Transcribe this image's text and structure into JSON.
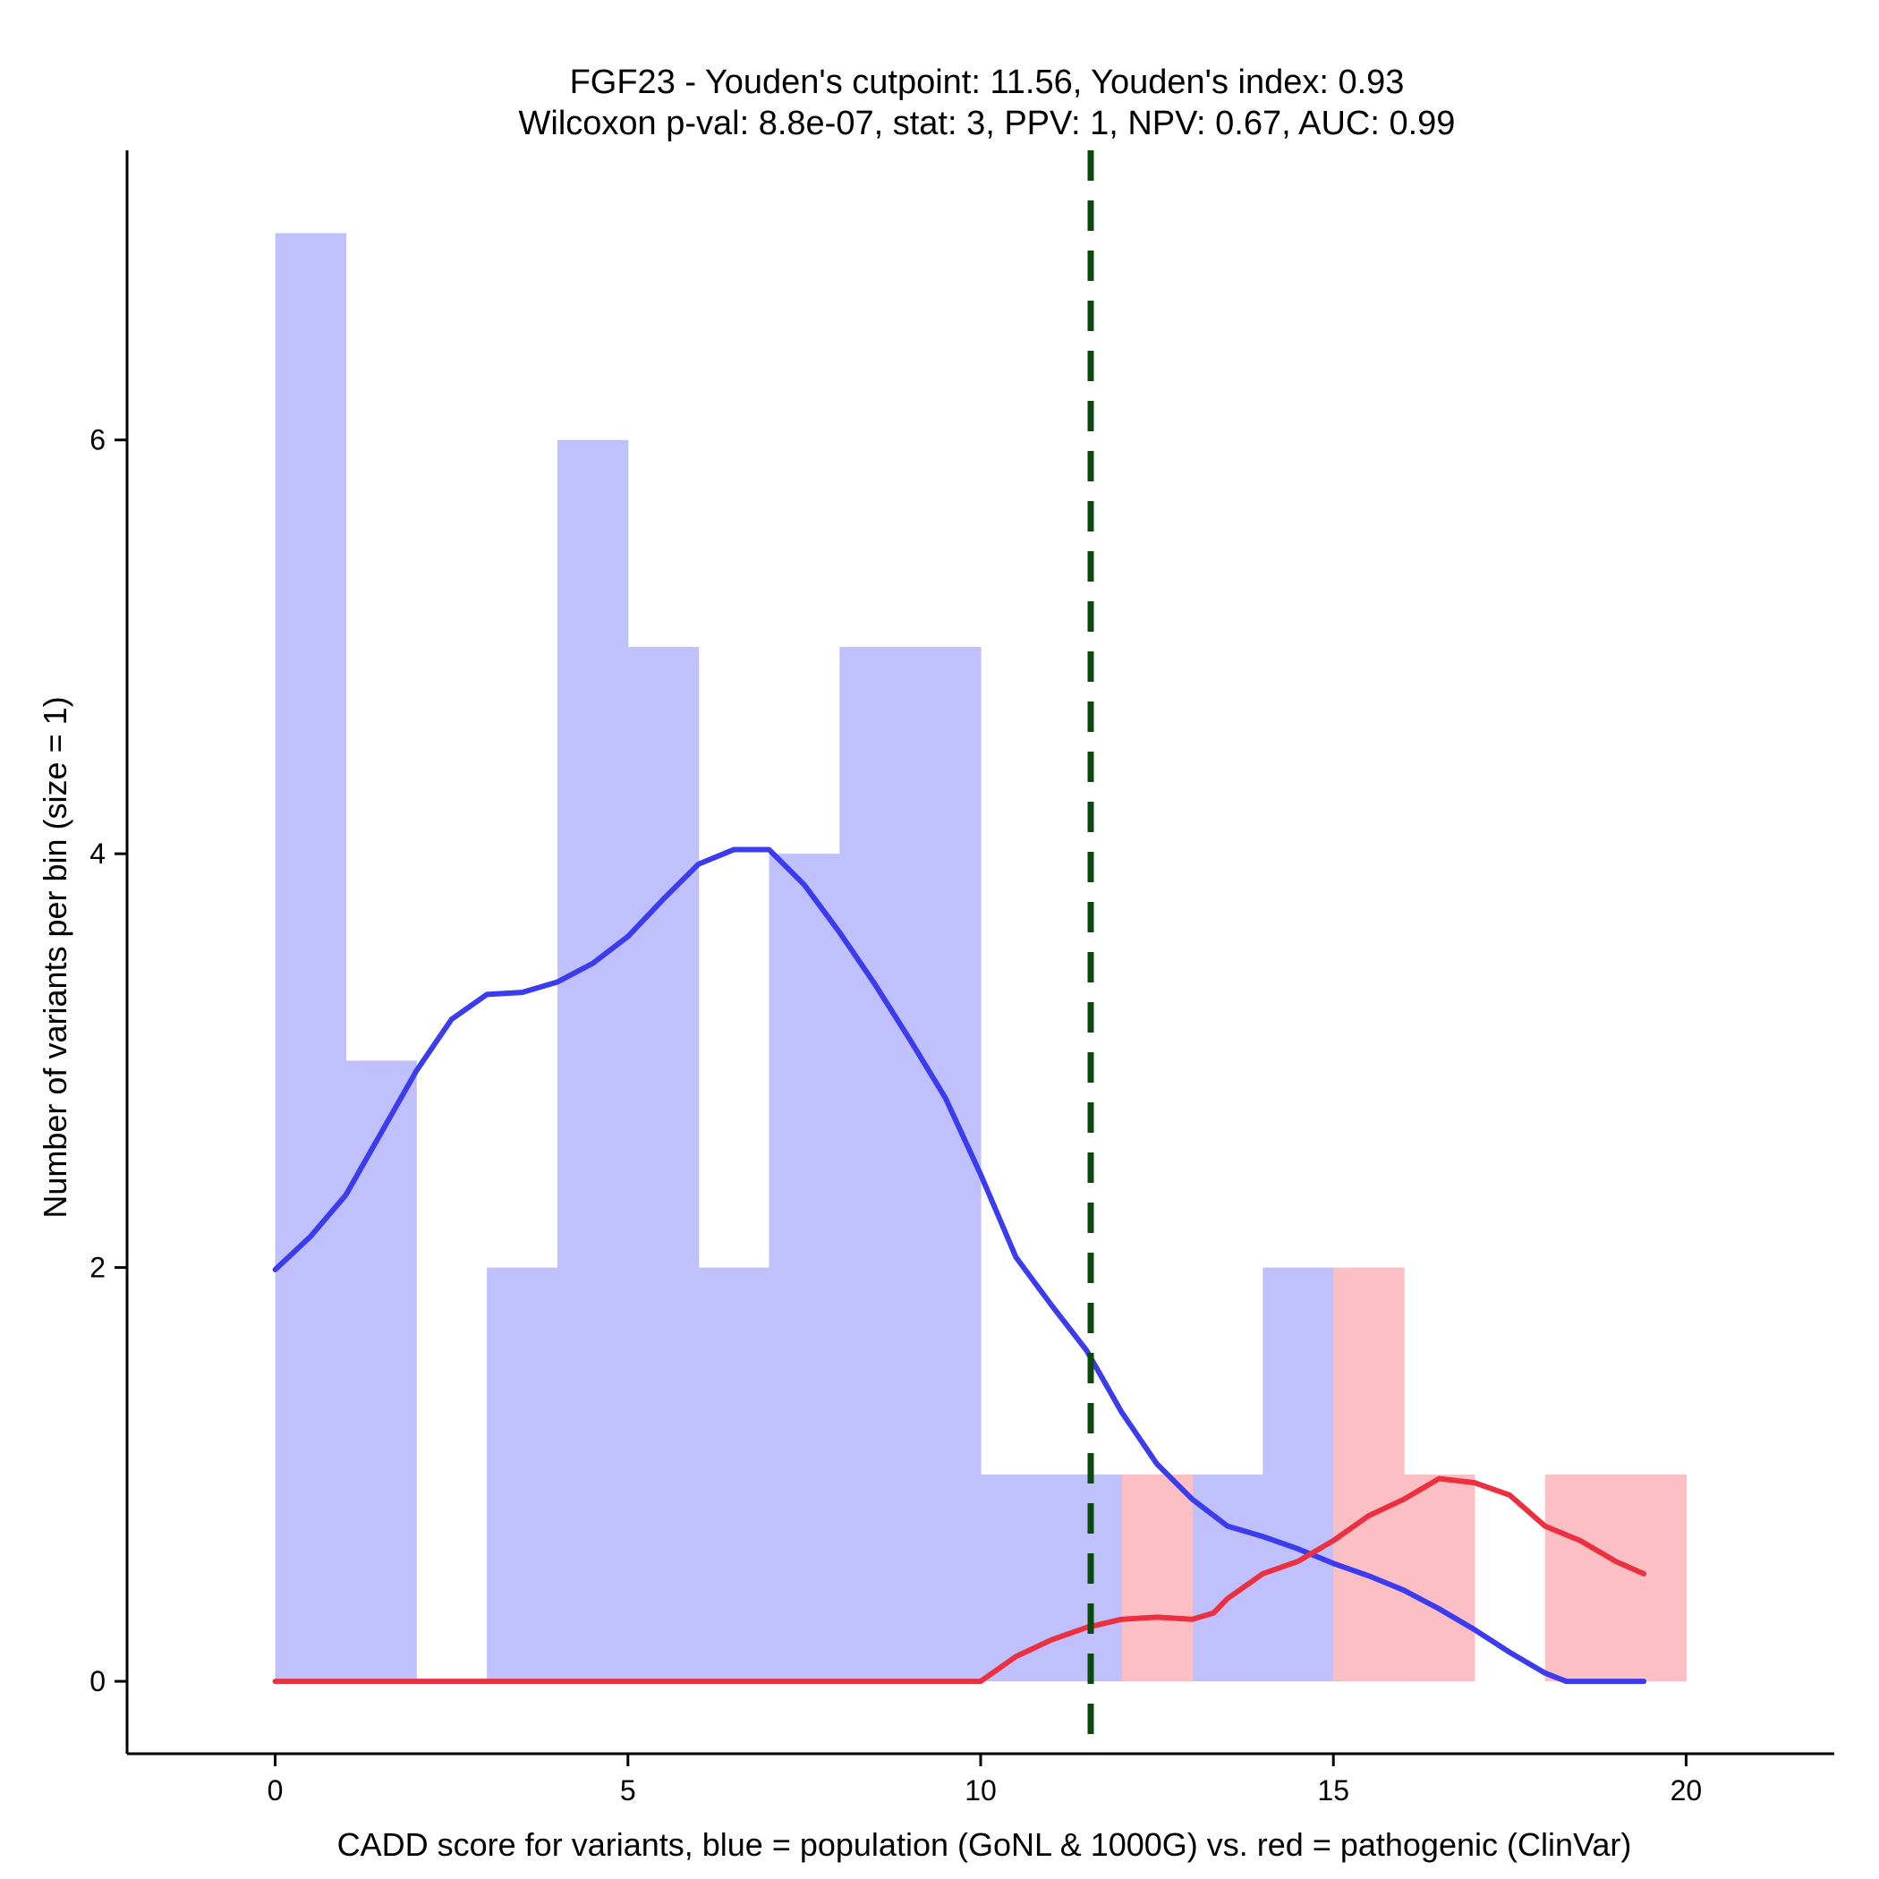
{
  "chart_data": {
    "type": "bar",
    "title": "FGF23 - Youden's cutpoint: 11.56, Youden's index: 0.93",
    "subtitle": "Wilcoxon p-val: 8.8e-07, stat: 3, PPV: 1, NPV: 0.67, AUC: 0.99",
    "xlabel": "CADD score for variants, blue = population (GoNL & 1000G) vs. red = pathogenic (ClinVar)",
    "ylabel": "Number of variants per bin (size = 1)",
    "xlim": [
      -2.1,
      22.1
    ],
    "ylim": [
      -0.35,
      7.4
    ],
    "x_ticks": [
      0,
      5,
      10,
      15,
      20
    ],
    "y_ticks": [
      0,
      2,
      4,
      6
    ],
    "bin_size": 1,
    "cutpoint": 11.56,
    "colors": {
      "population_bar": "#c0c0fc",
      "pathogenic_bar": "#fcc0c4",
      "population_line": "#3b3bf0",
      "pathogenic_line": "#ec3040",
      "cutpoint_line": "#0a4a0a"
    },
    "series": [
      {
        "name": "population (GoNL & 1000G)",
        "kind": "histogram",
        "bin_starts": [
          0,
          1,
          2,
          3,
          4,
          5,
          6,
          7,
          8,
          9,
          10,
          11,
          12,
          13,
          14,
          15,
          16,
          17,
          18,
          19
        ],
        "values": [
          7,
          3,
          0,
          2,
          6,
          5,
          2,
          4,
          5,
          5,
          1,
          1,
          0,
          1,
          2,
          0,
          0,
          0,
          0,
          0
        ]
      },
      {
        "name": "pathogenic (ClinVar)",
        "kind": "histogram",
        "bin_starts": [
          0,
          1,
          2,
          3,
          4,
          5,
          6,
          7,
          8,
          9,
          10,
          11,
          12,
          13,
          14,
          15,
          16,
          17,
          18,
          19
        ],
        "values": [
          0,
          0,
          0,
          0,
          0,
          0,
          0,
          0,
          0,
          0,
          0,
          0,
          1,
          0,
          0,
          2,
          1,
          0,
          1,
          1
        ]
      },
      {
        "name": "population density",
        "kind": "line",
        "x": [
          0,
          0.5,
          1,
          1.5,
          2,
          2.5,
          3,
          3.5,
          4,
          4.5,
          5,
          5.5,
          6,
          6.5,
          7,
          7.5,
          8,
          8.5,
          9,
          9.5,
          10,
          10.5,
          11,
          11.5,
          12,
          12.5,
          13,
          13.5,
          14,
          14.5,
          15,
          15.5,
          16,
          16.5,
          17,
          17.5,
          18,
          18.3,
          18.5,
          19,
          19.4
        ],
        "y": [
          1.99,
          2.15,
          2.35,
          2.65,
          2.95,
          3.2,
          3.32,
          3.33,
          3.38,
          3.47,
          3.6,
          3.78,
          3.95,
          4.02,
          4.02,
          3.85,
          3.62,
          3.37,
          3.1,
          2.82,
          2.45,
          2.05,
          1.82,
          1.6,
          1.3,
          1.05,
          0.88,
          0.75,
          0.7,
          0.64,
          0.57,
          0.51,
          0.44,
          0.35,
          0.25,
          0.14,
          0.04,
          0.0,
          0.0,
          0.0,
          0.0
        ]
      },
      {
        "name": "pathogenic density",
        "kind": "line",
        "x": [
          0,
          1,
          2,
          3,
          4,
          5,
          6,
          7,
          8,
          9,
          10,
          10.5,
          11,
          11.5,
          12,
          12.5,
          13,
          13.3,
          13.5,
          14,
          14.5,
          15,
          15.5,
          16,
          16.5,
          17,
          17.5,
          18,
          18.5,
          19,
          19.4
        ],
        "y": [
          0,
          0,
          0,
          0,
          0,
          0,
          0,
          0,
          0,
          0,
          0,
          0.12,
          0.2,
          0.26,
          0.3,
          0.31,
          0.3,
          0.33,
          0.4,
          0.52,
          0.58,
          0.68,
          0.8,
          0.88,
          0.98,
          0.96,
          0.9,
          0.75,
          0.68,
          0.58,
          0.52
        ]
      }
    ]
  }
}
